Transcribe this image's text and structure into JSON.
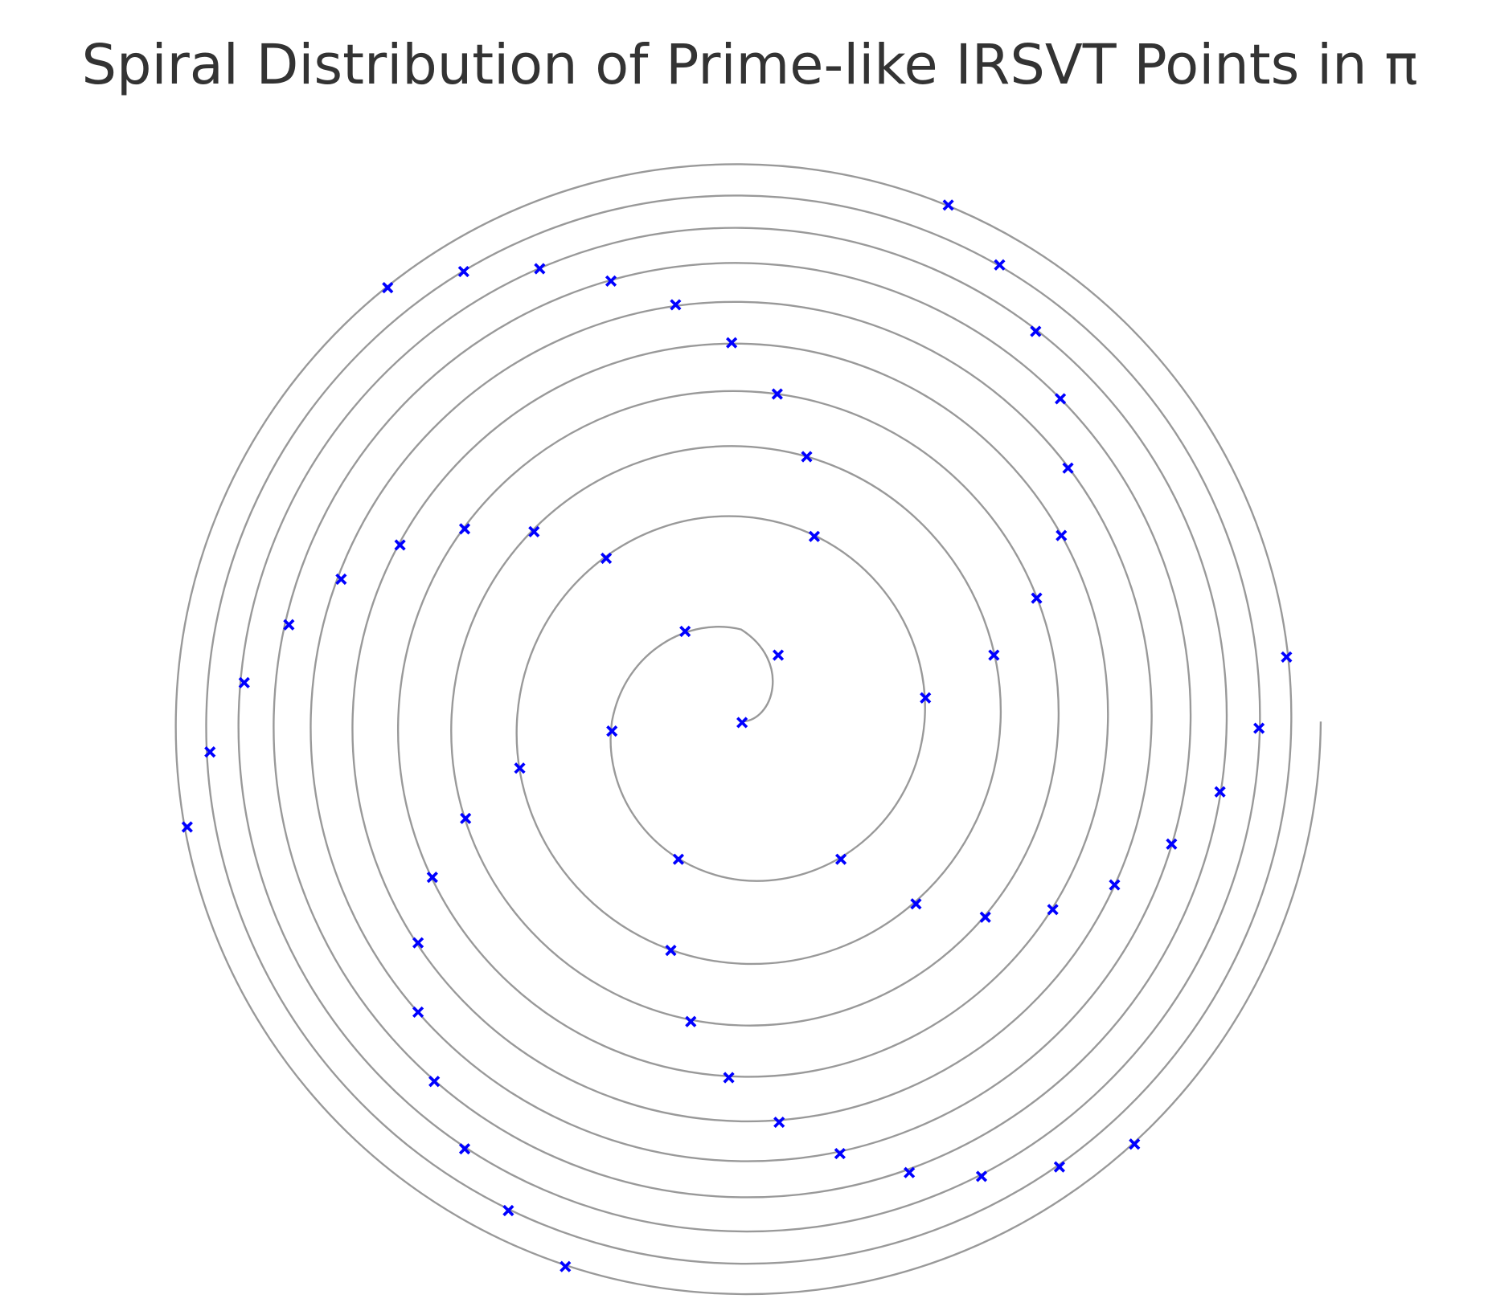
{
  "chart_data": {
    "type": "scatter",
    "title": "Spiral Distribution of Prime-like IRSVT Points in π",
    "xlim": [
      -650,
      650
    ],
    "ylim": [
      -625,
      625
    ],
    "series": [
      {
        "type": "line",
        "color": "#999999",
        "x": [
          0,
          0,
          -136,
          0,
          193,
          0,
          -236,
          0,
          273,
          0,
          -305,
          0,
          334,
          0,
          -361,
          0,
          386,
          0,
          -409,
          0,
          432,
          0,
          -453,
          0,
          473,
          0,
          -492,
          0,
          511,
          0,
          -529,
          0,
          546,
          0,
          -563,
          0,
          579,
          0,
          -595,
          0,
          610
        ],
        "y": [
          0,
          97,
          0,
          -167,
          0,
          216,
          0,
          -255,
          0,
          290,
          0,
          -320,
          0,
          348,
          0,
          -374,
          0,
          398,
          0,
          -421,
          0,
          442,
          0,
          -463,
          0,
          483,
          0,
          -501,
          0,
          520,
          0,
          -537,
          0,
          554,
          0,
          -571,
          0,
          587,
          0,
          -603,
          0
        ]
      },
      {
        "type": "scatter",
        "color": "#0000ff",
        "marker": "X",
        "x": [
          218,
          272,
          310,
          336,
          344,
          337,
          311,
          266,
          194,
          574,
          545,
          504,
          453,
          393,
          328,
          257,
          184,
          105,
          -66,
          -136,
          -59,
          39,
          1,
          77,
          69,
          38,
          -10,
          -69,
          -137,
          -212,
          -292,
          -372,
          -142,
          -218,
          -291,
          -359,
          -421,
          -476,
          -523,
          -559,
          -583,
          -233,
          -290,
          -325,
          -340,
          -340,
          -323,
          -291,
          -245,
          -185,
          -74,
          -53,
          -13,
          40,
          104,
          177,
          253,
          335,
          414
        ],
        "y": [
          544,
          481,
          411,
          340,
          267,
          196,
          130,
          70,
          25,
          68,
          -7,
          -74,
          -129,
          -172,
          -198,
          -206,
          -192,
          -145,
          -145,
          -10,
          95,
          70,
          -1,
          195,
          279,
          345,
          399,
          439,
          464,
          477,
          474,
          457,
          172,
          200,
          203,
          186,
          150,
          102,
          41,
          -32,
          -111,
          -49,
          -102,
          -164,
          -233,
          -306,
          -379,
          -450,
          -515,
          -574,
          -241,
          -316,
          -375,
          -422,
          -455,
          -475,
          -479,
          -469,
          -445
        ]
      }
    ]
  }
}
